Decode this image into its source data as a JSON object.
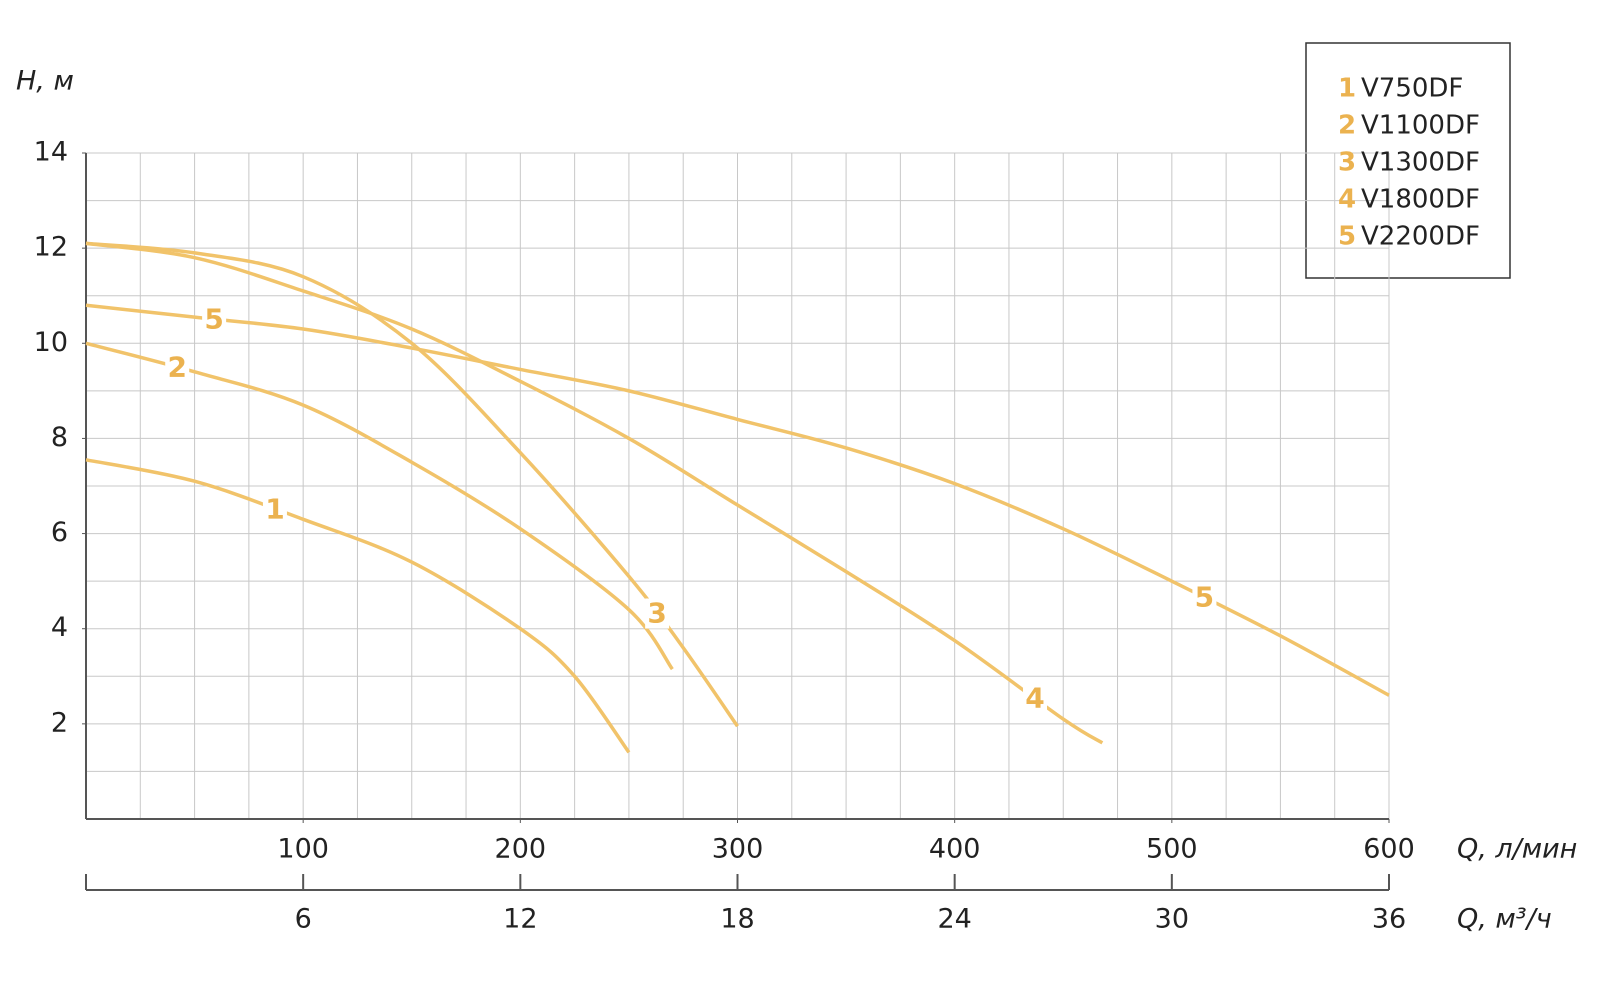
{
  "chart_data": {
    "type": "line",
    "y_label": "H, м",
    "x_label": "Q, л/мин",
    "x2_label": "Q, м³/ч",
    "xlim": [
      0,
      600
    ],
    "xticks": [
      100,
      200,
      300,
      400,
      500,
      600
    ],
    "x2lim": [
      0,
      36
    ],
    "x2ticks": [
      6,
      12,
      18,
      24,
      30,
      36
    ],
    "ylim": [
      0,
      14
    ],
    "yticks": [
      2,
      4,
      6,
      8,
      10,
      12,
      14
    ],
    "x_grid_step": 25,
    "y_grid_step": 1,
    "grid": true,
    "legend": "upper right",
    "series": [
      {
        "label": "1",
        "name": "V750DF",
        "color": "#f1c36a",
        "x": [
          0,
          50,
          100,
          150,
          200,
          225,
          250
        ],
        "values": [
          7.55,
          7.1,
          6.3,
          5.4,
          4.0,
          3.0,
          1.4
        ]
      },
      {
        "label": "2",
        "name": "V1100DF",
        "color": "#f1c36a",
        "x": [
          0,
          50,
          100,
          150,
          200,
          250,
          270
        ],
        "values": [
          10.0,
          9.4,
          8.7,
          7.5,
          6.1,
          4.4,
          3.15
        ]
      },
      {
        "label": "3",
        "name": "V1300DF",
        "color": "#f1c36a",
        "x": [
          0,
          50,
          100,
          150,
          200,
          250,
          275,
          300
        ],
        "values": [
          12.1,
          11.9,
          11.4,
          10.0,
          7.7,
          5.1,
          3.6,
          1.95
        ]
      },
      {
        "label": "4",
        "name": "V1800DF",
        "color": "#f1c36a",
        "x": [
          0,
          50,
          100,
          150,
          200,
          250,
          300,
          350,
          400,
          450,
          468
        ],
        "values": [
          12.1,
          11.8,
          11.1,
          10.3,
          9.2,
          8.0,
          6.6,
          5.2,
          3.75,
          2.1,
          1.6
        ]
      },
      {
        "label": "5",
        "name": "V2200DF",
        "color": "#f1c36a",
        "x": [
          0,
          50,
          100,
          150,
          200,
          250,
          300,
          350,
          400,
          450,
          500,
          550,
          600
        ],
        "values": [
          10.8,
          10.55,
          10.3,
          9.9,
          9.45,
          9.0,
          8.4,
          7.8,
          7.05,
          6.1,
          5.0,
          3.85,
          2.6
        ]
      }
    ]
  }
}
